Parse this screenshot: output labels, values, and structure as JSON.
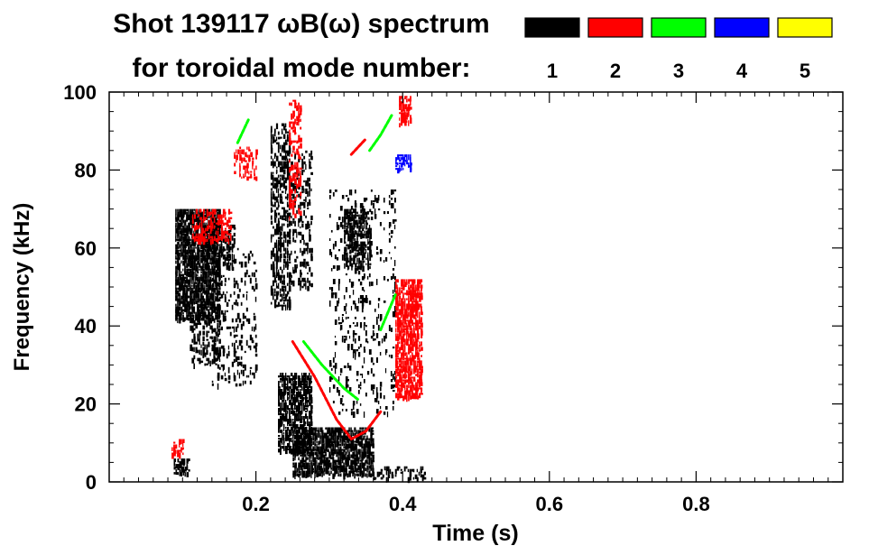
{
  "chart_data": {
    "type": "heatmap",
    "title_line1": "Shot 139117 ωB(ω) spectrum",
    "title_line2": "for toroidal mode number:",
    "xlabel": "Time (s)",
    "ylabel": "Frequency (kHz)",
    "xlim": [
      0.0,
      1.0
    ],
    "ylim": [
      0,
      100
    ],
    "x_ticks": [
      0.2,
      0.4,
      0.6,
      0.8
    ],
    "x_tick_labels": [
      "0.2",
      "0.4",
      "0.6",
      "0.8"
    ],
    "y_ticks": [
      0,
      20,
      40,
      60,
      80,
      100
    ],
    "y_tick_labels": [
      "0",
      "20",
      "40",
      "60",
      "80",
      "100"
    ],
    "legend": [
      {
        "label": "1",
        "color": "#000000"
      },
      {
        "label": "2",
        "color": "#ff0000"
      },
      {
        "label": "3",
        "color": "#00ff00"
      },
      {
        "label": "4",
        "color": "#0000ff"
      },
      {
        "label": "5",
        "color": "#ffff00"
      }
    ],
    "regions": [
      {
        "mode": 1,
        "t": [
          0.09,
          0.15
        ],
        "f": [
          42,
          70
        ],
        "density": 0.85
      },
      {
        "mode": 1,
        "t": [
          0.11,
          0.15
        ],
        "f": [
          30,
          45
        ],
        "density": 0.35
      },
      {
        "mode": 1,
        "t": [
          0.13,
          0.17
        ],
        "f": [
          55,
          66
        ],
        "density": 0.5
      },
      {
        "mode": 1,
        "t": [
          0.088,
          0.11
        ],
        "f": [
          2,
          6
        ],
        "density": 0.6
      },
      {
        "mode": 1,
        "t": [
          0.14,
          0.2
        ],
        "f": [
          25,
          60
        ],
        "density": 0.15
      },
      {
        "mode": 1,
        "t": [
          0.22,
          0.245
        ],
        "f": [
          45,
          92
        ],
        "density": 0.45
      },
      {
        "mode": 1,
        "t": [
          0.245,
          0.275
        ],
        "f": [
          50,
          85
        ],
        "density": 0.3
      },
      {
        "mode": 1,
        "t": [
          0.23,
          0.275
        ],
        "f": [
          8,
          28
        ],
        "density": 0.75
      },
      {
        "mode": 1,
        "t": [
          0.25,
          0.36
        ],
        "f": [
          2,
          14
        ],
        "density": 0.8
      },
      {
        "mode": 1,
        "t": [
          0.32,
          0.355
        ],
        "f": [
          55,
          70
        ],
        "density": 0.65
      },
      {
        "mode": 1,
        "t": [
          0.3,
          0.39
        ],
        "f": [
          18,
          75
        ],
        "density": 0.12
      },
      {
        "mode": 1,
        "t": [
          0.36,
          0.43
        ],
        "f": [
          1,
          4
        ],
        "density": 0.3
      },
      {
        "mode": 2,
        "t": [
          0.113,
          0.165
        ],
        "f": [
          62,
          70
        ],
        "density": 0.45
      },
      {
        "mode": 2,
        "t": [
          0.39,
          0.425
        ],
        "f": [
          22,
          52
        ],
        "density": 0.8
      },
      {
        "mode": 2,
        "t": [
          0.395,
          0.41
        ],
        "f": [
          92,
          99
        ],
        "density": 0.7
      },
      {
        "mode": 2,
        "t": [
          0.085,
          0.1
        ],
        "f": [
          7,
          11
        ],
        "density": 0.45
      },
      {
        "mode": 2,
        "t": [
          0.17,
          0.2
        ],
        "f": [
          78,
          86
        ],
        "density": 0.35
      },
      {
        "mode": 2,
        "t": [
          0.245,
          0.26
        ],
        "f": [
          68,
          98
        ],
        "density": 0.35
      },
      {
        "mode": 4,
        "t": [
          0.39,
          0.41
        ],
        "f": [
          80,
          84
        ],
        "density": 0.75
      }
    ],
    "ridges": [
      {
        "mode": 2,
        "points": [
          [
            0.25,
            36
          ],
          [
            0.28,
            27
          ],
          [
            0.31,
            16
          ],
          [
            0.33,
            11
          ],
          [
            0.35,
            13
          ],
          [
            0.37,
            18
          ]
        ]
      },
      {
        "mode": 3,
        "points": [
          [
            0.265,
            36
          ],
          [
            0.29,
            30
          ],
          [
            0.32,
            24
          ],
          [
            0.34,
            21
          ]
        ]
      },
      {
        "mode": 3,
        "points": [
          [
            0.175,
            87
          ],
          [
            0.19,
            93
          ]
        ]
      },
      {
        "mode": 3,
        "points": [
          [
            0.355,
            85
          ],
          [
            0.37,
            89
          ],
          [
            0.385,
            94
          ]
        ]
      },
      {
        "mode": 3,
        "points": [
          [
            0.37,
            39
          ],
          [
            0.39,
            48
          ]
        ]
      },
      {
        "mode": 2,
        "points": [
          [
            0.33,
            84
          ],
          [
            0.35,
            88
          ]
        ]
      }
    ]
  }
}
